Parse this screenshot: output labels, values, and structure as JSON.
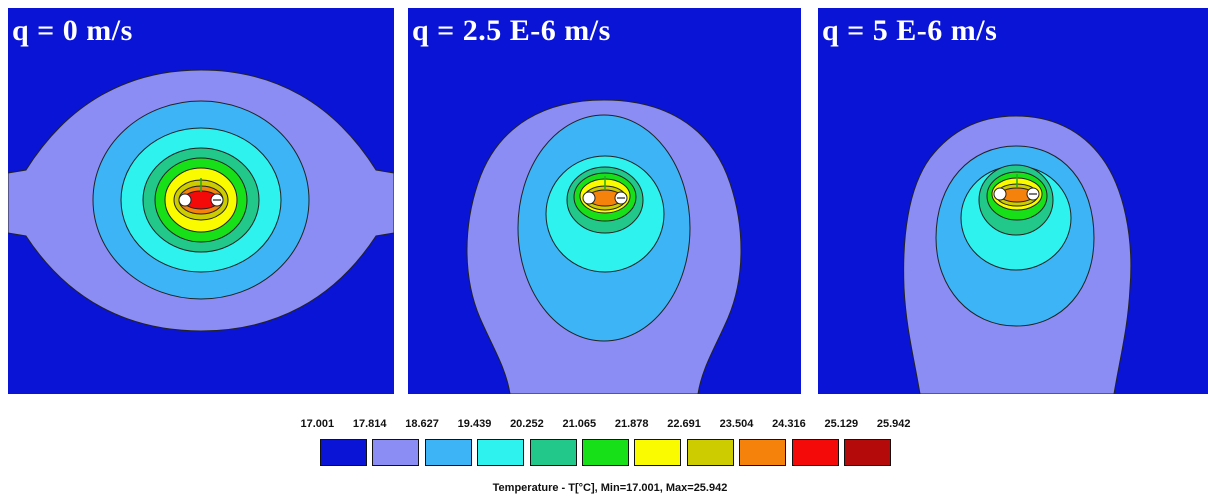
{
  "panels": [
    {
      "label": "q = 0 m/s"
    },
    {
      "label": "q = 2.5 E-6 m/s"
    },
    {
      "label": "q = 5 E-6 m/s"
    }
  ],
  "legend": {
    "values": [
      "17.001",
      "17.814",
      "18.627",
      "19.439",
      "20.252",
      "21.065",
      "21.878",
      "22.691",
      "23.504",
      "24.316",
      "25.129",
      "25.942"
    ],
    "colors": [
      "#0a14d6",
      "#8c8cf5",
      "#3cb4f5",
      "#2ef2ee",
      "#22c88a",
      "#18e018",
      "#fbfb00",
      "#cccc00",
      "#f5820a",
      "#f50a0a",
      "#b40a0a"
    ],
    "caption": "Temperature  - T[°C], Min=17.001, Max=25.942"
  }
}
